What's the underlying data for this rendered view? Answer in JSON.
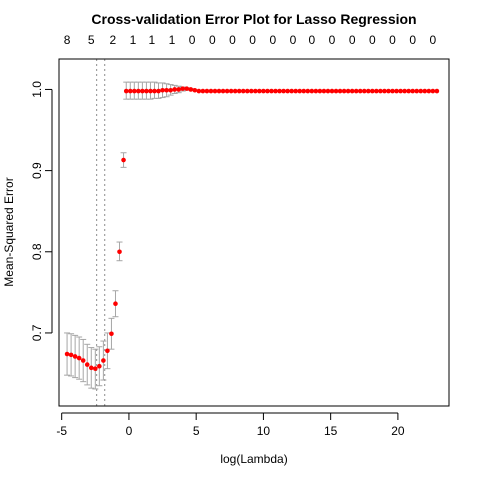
{
  "chart_data": {
    "type": "scatter",
    "title": "Cross-validation Error Plot for Lasso Regression",
    "xlabel": "log(Lambda)",
    "ylabel": "Mean-Squared Error",
    "xlim": [
      -5.2,
      23.8
    ],
    "ylim": [
      0.61,
      1.0375
    ],
    "x_ticks": [
      -5,
      0,
      5,
      10,
      15,
      20
    ],
    "y_ticks": [
      0.7,
      0.8,
      0.9,
      1.0
    ],
    "x_tick_labels": [
      "-5",
      "0",
      "5",
      "10",
      "15",
      "20"
    ],
    "y_tick_labels": [
      "0.7",
      "0.8",
      "0.9",
      "1.0"
    ],
    "top_axis": {
      "x": [
        -4.6,
        -2.8,
        -1.2,
        0.3,
        1.7,
        3.2,
        4.7,
        6.2,
        7.7,
        9.2,
        10.7,
        12.2,
        13.6,
        15.1,
        16.6,
        18.1,
        19.6,
        21.1,
        22.6
      ],
      "labels": [
        "8",
        "5",
        "2",
        "1",
        "1",
        "1",
        "0",
        "0",
        "0",
        "0",
        "0",
        "0",
        "0",
        "0",
        "0",
        "0",
        "0",
        "0",
        "0"
      ]
    },
    "vlines": [
      -2.4,
      -1.8
    ],
    "grid": false,
    "series": [
      {
        "x": [
          -4.6,
          -4.3,
          -4.0,
          -3.7,
          -3.4,
          -3.1,
          -2.8,
          -2.5,
          -2.2,
          -1.9,
          -1.6,
          -1.3,
          -0.7
        ],
        "mse": [
          0.674,
          0.673,
          0.671,
          0.669,
          0.666,
          0.661,
          0.657,
          0.656,
          0.659,
          0.666,
          0.678,
          0.699,
          0.8
        ],
        "upper": [
          0.7,
          0.699,
          0.697,
          0.695,
          0.692,
          0.686,
          0.682,
          0.68,
          0.683,
          0.69,
          0.7,
          0.718,
          0.812
        ],
        "lower": [
          0.648,
          0.647,
          0.645,
          0.643,
          0.64,
          0.636,
          0.632,
          0.631,
          0.635,
          0.642,
          0.656,
          0.68,
          0.789
        ]
      },
      {
        "x": [
          -1.0,
          -0.4
        ],
        "mse": [
          0.736,
          0.913
        ],
        "upper": [
          0.752,
          0.922
        ],
        "lower": [
          0.72,
          0.904
        ]
      },
      {
        "x_start": -0.2,
        "x_step": 0.3,
        "count": 78,
        "mse_head": [
          0.998,
          0.998,
          0.998,
          0.998,
          0.998,
          0.998,
          0.998,
          0.998,
          0.998,
          0.999,
          0.999,
          0.999,
          1.0,
          1.0,
          1.001,
          1.001,
          1.0,
          0.999
        ],
        "upper_head": [
          1.009,
          1.009,
          1.009,
          1.009,
          1.009,
          1.009,
          1.009,
          1.009,
          1.008,
          1.008,
          1.007,
          1.006,
          1.005,
          1.004,
          1.003,
          1.002,
          1.001,
          0.999
        ],
        "lower_head": [
          0.988,
          0.988,
          0.988,
          0.988,
          0.988,
          0.988,
          0.988,
          0.989,
          0.989,
          0.99,
          0.991,
          0.993,
          0.995,
          0.996,
          0.998,
          0.999,
          0.999,
          0.999
        ],
        "mse_tail": 0.998
      }
    ]
  }
}
